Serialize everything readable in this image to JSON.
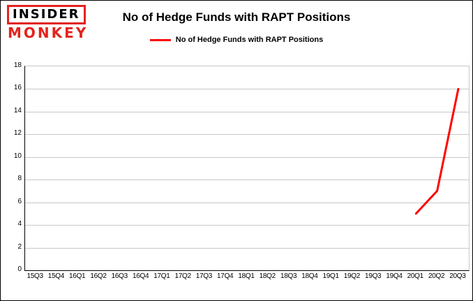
{
  "colors": {
    "logo_red": "#e3231e",
    "line_red": "#ff0000",
    "grid": "#c8c8c8",
    "axis": "#000000",
    "background": "#ffffff"
  },
  "header": {
    "logo_line1": "INSIDER",
    "logo_line2": "MONKEY",
    "title": "No of Hedge Funds with RAPT Positions"
  },
  "legend": {
    "label": "No of Hedge Funds with RAPT Positions"
  },
  "chart_data": {
    "type": "line",
    "title": "No of Hedge Funds with RAPT Positions",
    "categories": [
      "15Q3",
      "15Q4",
      "16Q1",
      "16Q2",
      "16Q3",
      "16Q4",
      "17Q1",
      "17Q2",
      "17Q3",
      "17Q4",
      "18Q1",
      "18Q2",
      "18Q3",
      "18Q4",
      "19Q1",
      "19Q2",
      "19Q3",
      "19Q4",
      "20Q1",
      "20Q2",
      "20Q3"
    ],
    "series": [
      {
        "name": "No of Hedge Funds with RAPT Positions",
        "color": "#ff0000",
        "values": [
          null,
          null,
          null,
          null,
          null,
          null,
          null,
          null,
          null,
          null,
          null,
          null,
          null,
          null,
          null,
          null,
          null,
          null,
          5,
          7,
          16
        ]
      }
    ],
    "xlabel": "",
    "ylabel": "",
    "ylim": [
      0,
      18
    ],
    "ytick_step": 2,
    "grid": true,
    "legend_position": "top"
  }
}
